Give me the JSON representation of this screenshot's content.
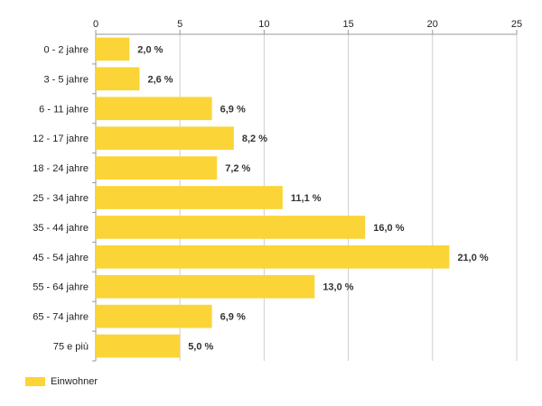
{
  "chart_data": {
    "type": "bar",
    "orientation": "horizontal",
    "categories": [
      "0 - 2 jahre",
      "3 - 5 jahre",
      "6 - 11 jahre",
      "12 - 17 jahre",
      "18 - 24 jahre",
      "25 - 34 jahre",
      "35 - 44 jahre",
      "45 - 54 jahre",
      "55 - 64 jahre",
      "65 - 74 jahre",
      "75 e più"
    ],
    "values": [
      2.0,
      2.6,
      6.9,
      8.2,
      7.2,
      11.1,
      16.0,
      21.0,
      13.0,
      6.9,
      5.0
    ],
    "value_labels": [
      "2,0 %",
      "2,6 %",
      "6,9 %",
      "8,2 %",
      "7,2 %",
      "11,1 %",
      "16,0 %",
      "21,0 %",
      "13,0 %",
      "6,9 %",
      "5,0 %"
    ],
    "series": [
      {
        "name": "Einwohner",
        "values": [
          2.0,
          2.6,
          6.9,
          8.2,
          7.2,
          11.1,
          16.0,
          21.0,
          13.0,
          6.9,
          5.0
        ]
      }
    ],
    "xlim": [
      0,
      25
    ],
    "xticks": [
      0,
      5,
      10,
      15,
      20,
      25
    ],
    "axis_position": "top",
    "grid": true,
    "legend_position": "bottom-left",
    "colors": {
      "bar": "#FBD437",
      "grid": "#d0d0d0",
      "axis": "#999999"
    }
  },
  "legend": {
    "label": "Einwohner"
  }
}
